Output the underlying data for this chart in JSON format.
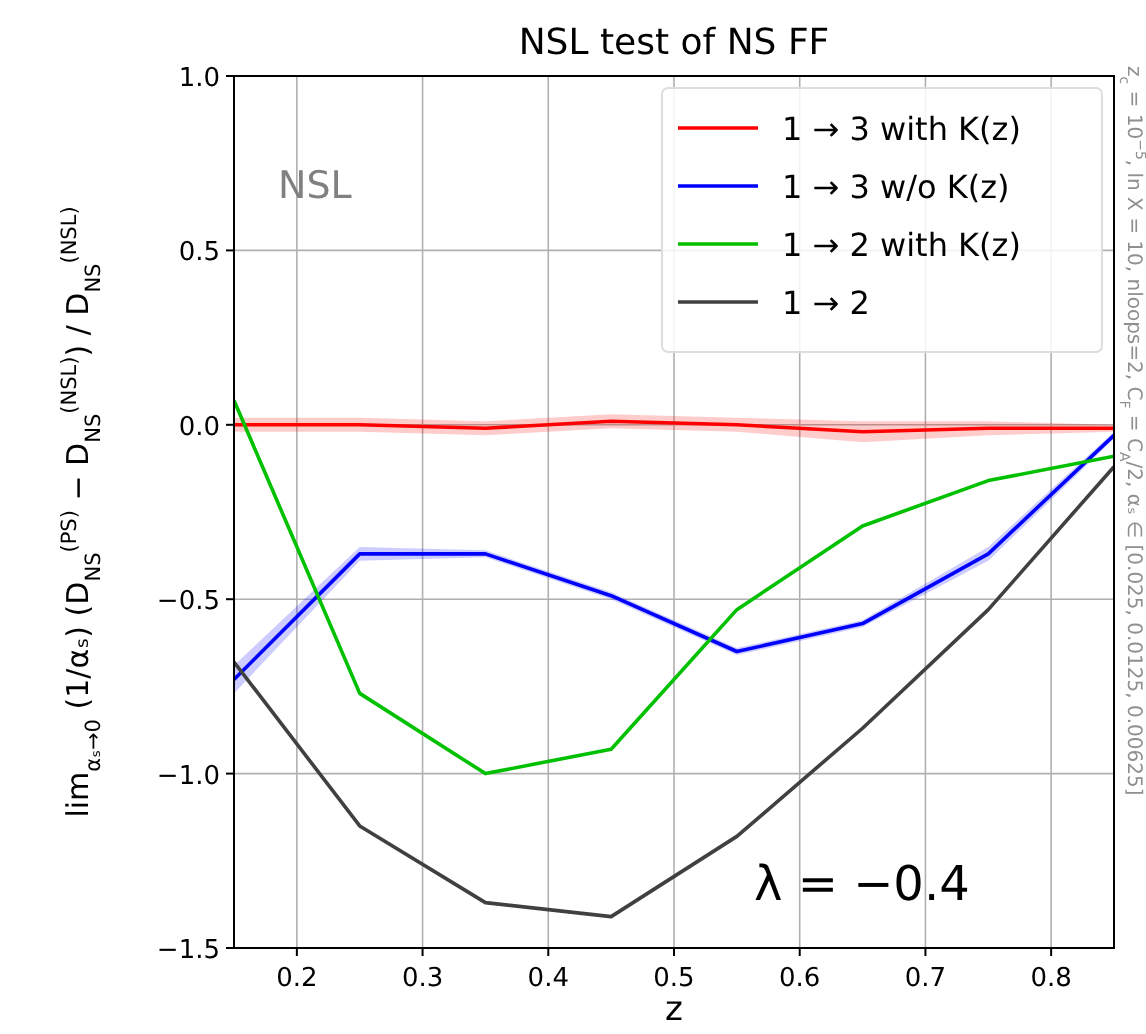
{
  "chart_data": {
    "type": "line",
    "title": "NSL test of NS FF",
    "xlabel": "z",
    "ylabel": "lim$_{αₛ→0}$ (1/αₛ) (D$_{NS}$$^{(PS)}$ − D$_{NS}$$^{(NSL)}$) / D$_{NS}$$^{(NSL)}$",
    "x": [
      0.15,
      0.25,
      0.35,
      0.45,
      0.55,
      0.65,
      0.75,
      0.85
    ],
    "series": [
      {
        "name": "1 → 3 with K(z)",
        "color": "#ff0000",
        "values": [
          0.0,
          0.0,
          -0.01,
          0.01,
          0.0,
          -0.02,
          -0.01,
          -0.01
        ],
        "lower": [
          -0.02,
          -0.02,
          -0.03,
          -0.01,
          -0.02,
          -0.05,
          -0.03,
          -0.02
        ],
        "upper": [
          0.02,
          0.02,
          0.01,
          0.03,
          0.02,
          0.01,
          0.01,
          0.0
        ]
      },
      {
        "name": "1 → 3 w/o K(z)",
        "color": "#0000ff",
        "values": [
          -0.73,
          -0.37,
          -0.37,
          -0.49,
          -0.65,
          -0.57,
          -0.37,
          -0.03
        ],
        "lower": [
          -0.77,
          -0.39,
          -0.38,
          -0.5,
          -0.66,
          -0.58,
          -0.39,
          -0.04
        ],
        "upper": [
          -0.69,
          -0.35,
          -0.36,
          -0.48,
          -0.64,
          -0.56,
          -0.35,
          -0.02
        ]
      },
      {
        "name": "1 → 2 with K(z)",
        "color": "#00c000",
        "values": [
          0.07,
          -0.77,
          -1.0,
          -0.93,
          -0.53,
          -0.29,
          -0.16,
          -0.09
        ]
      },
      {
        "name": "1 → 2",
        "color": "#404040",
        "values": [
          -0.68,
          -1.15,
          -1.37,
          -1.41,
          -1.18,
          -0.87,
          -0.53,
          -0.12
        ]
      }
    ],
    "xlim": [
      0.15,
      0.85
    ],
    "ylim": [
      -1.5,
      1.0
    ],
    "xticks": [
      0.2,
      0.3,
      0.4,
      0.5,
      0.6,
      0.7,
      0.8
    ],
    "yticks": [
      {
        "value": -1.5,
        "label": "−1.5"
      },
      {
        "value": -1.0,
        "label": "−1.0"
      },
      {
        "value": -0.5,
        "label": "−0.5"
      },
      {
        "value": 0.0,
        "label": "0.0"
      },
      {
        "value": 0.5,
        "label": "0.5"
      },
      {
        "value": 1.0,
        "label": "1.0"
      }
    ],
    "grid": true,
    "legend": "top right",
    "marker": "none",
    "line_style": "solid",
    "annotations": [
      "NSL",
      "λ = −0.4",
      "z$_{c}$ = 10$^{−5}$, ln X = 10, nloops=2, C$_{F}$ = C$_{A}$/2, αₛ ∈ [0.025, 0.0125, 0.00625]"
    ]
  }
}
